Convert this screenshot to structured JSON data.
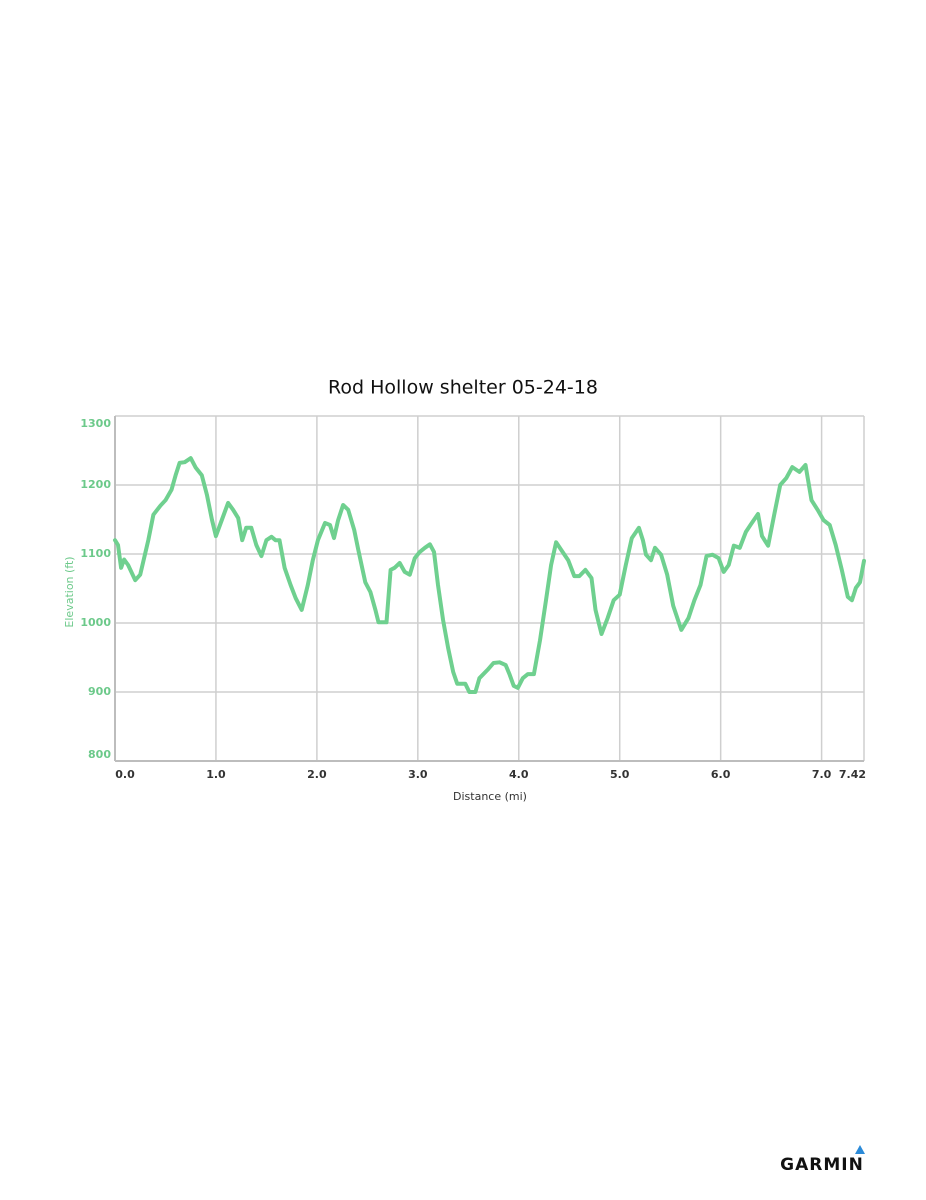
{
  "chart_data": {
    "type": "line",
    "title": "Rod Hollow shelter 05-24-18",
    "y_label": "Elevation (ft)",
    "x_label": "Distance (mi)",
    "color": "#6fd08f",
    "grid": true,
    "xlim": [
      0,
      7.42
    ],
    "ylim": [
      800,
      1300
    ],
    "xticks": [
      {
        "value": 0,
        "label": "0.0"
      },
      {
        "value": 1,
        "label": "1.0"
      },
      {
        "value": 2,
        "label": "2.0"
      },
      {
        "value": 3,
        "label": "3.0"
      },
      {
        "value": 4,
        "label": "4.0"
      },
      {
        "value": 5,
        "label": "5.0"
      },
      {
        "value": 6,
        "label": "6.0"
      },
      {
        "value": 7,
        "label": "7.0"
      },
      7.42
    ],
    "yticks": [
      800,
      900,
      1000,
      1100,
      1200,
      1300
    ],
    "x": [
      0,
      0.03,
      0.06,
      0.09,
      0.13,
      0.2,
      0.25,
      0.33,
      0.38,
      0.45,
      0.5,
      0.56,
      0.6,
      0.64,
      0.69,
      0.75,
      0.8,
      0.86,
      0.91,
      0.96,
      1.0,
      1.06,
      1.12,
      1.17,
      1.22,
      1.26,
      1.3,
      1.35,
      1.4,
      1.45,
      1.5,
      1.55,
      1.59,
      1.63,
      1.68,
      1.74,
      1.79,
      1.85,
      1.91,
      1.96,
      2.01,
      2.08,
      2.13,
      2.17,
      2.21,
      2.26,
      2.31,
      2.37,
      2.41,
      2.48,
      2.53,
      2.58,
      2.61,
      2.69,
      2.73,
      2.77,
      2.82,
      2.87,
      2.92,
      2.97,
      3.02,
      3.07,
      3.12,
      3.16,
      3.2,
      3.25,
      3.3,
      3.35,
      3.39,
      3.47,
      3.51,
      3.57,
      3.61,
      3.69,
      3.75,
      3.81,
      3.87,
      3.91,
      3.95,
      3.99,
      4.04,
      4.09,
      4.15,
      4.21,
      4.27,
      4.32,
      4.37,
      4.42,
      4.49,
      4.55,
      4.6,
      4.66,
      4.72,
      4.76,
      4.82,
      4.88,
      4.94,
      5.0,
      5.06,
      5.12,
      5.19,
      5.23,
      5.26,
      5.31,
      5.35,
      5.41,
      5.47,
      5.53,
      5.61,
      5.68,
      5.74,
      5.8,
      5.86,
      5.92,
      5.98,
      6.03,
      6.08,
      6.13,
      6.19,
      6.25,
      6.3,
      6.37,
      6.41,
      6.47,
      6.53,
      6.59,
      6.65,
      6.71,
      6.78,
      6.84,
      6.9,
      6.96,
      7.02,
      7.08,
      7.14,
      7.2,
      7.26,
      7.3,
      7.34,
      7.38,
      7.42
    ],
    "values": [
      1120,
      1113,
      1080,
      1092,
      1084,
      1062,
      1070,
      1120,
      1157,
      1170,
      1178,
      1193,
      1214,
      1232,
      1233,
      1239,
      1225,
      1214,
      1186,
      1150,
      1126,
      1150,
      1174,
      1164,
      1152,
      1120,
      1138,
      1138,
      1113,
      1097,
      1120,
      1125,
      1120,
      1120,
      1080,
      1055,
      1036,
      1019,
      1055,
      1091,
      1120,
      1145,
      1142,
      1123,
      1149,
      1171,
      1164,
      1135,
      1106,
      1059,
      1045,
      1019,
      1001,
      1001,
      1077,
      1080,
      1087,
      1074,
      1070,
      1094,
      1103,
      1109,
      1114,
      1103,
      1055,
      1004,
      964,
      929,
      912,
      912,
      900,
      900,
      920,
      932,
      942,
      943,
      939,
      925,
      909,
      906,
      920,
      926,
      926,
      975,
      1033,
      1084,
      1117,
      1106,
      1091,
      1068,
      1068,
      1077,
      1065,
      1019,
      984,
      1007,
      1033,
      1041,
      1084,
      1123,
      1138,
      1120,
      1099,
      1091,
      1109,
      1099,
      1070,
      1025,
      990,
      1007,
      1033,
      1055,
      1097,
      1099,
      1094,
      1074,
      1084,
      1112,
      1109,
      1132,
      1143,
      1158,
      1126,
      1112,
      1157,
      1200,
      1210,
      1226,
      1219,
      1229,
      1178,
      1164,
      1149,
      1142,
      1113,
      1077,
      1038,
      1033,
      1051,
      1059,
      1090
    ]
  },
  "logo": "GARMIN"
}
